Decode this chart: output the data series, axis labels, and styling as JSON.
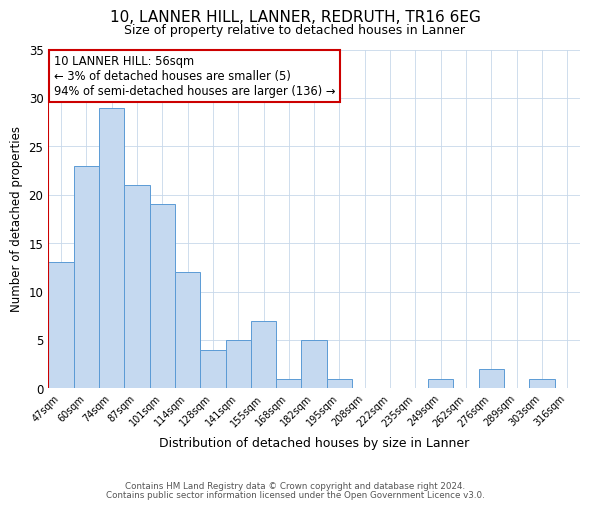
{
  "title": "10, LANNER HILL, LANNER, REDRUTH, TR16 6EG",
  "subtitle": "Size of property relative to detached houses in Lanner",
  "xlabel": "Distribution of detached houses by size in Lanner",
  "ylabel": "Number of detached properties",
  "bar_labels": [
    "47sqm",
    "60sqm",
    "74sqm",
    "87sqm",
    "101sqm",
    "114sqm",
    "128sqm",
    "141sqm",
    "155sqm",
    "168sqm",
    "182sqm",
    "195sqm",
    "208sqm",
    "222sqm",
    "235sqm",
    "249sqm",
    "262sqm",
    "276sqm",
    "289sqm",
    "303sqm",
    "316sqm"
  ],
  "bar_values": [
    13,
    23,
    29,
    21,
    19,
    12,
    4,
    5,
    7,
    1,
    5,
    1,
    0,
    0,
    0,
    1,
    0,
    2,
    0,
    1,
    0
  ],
  "bar_color": "#c5d9f0",
  "bar_edge_color": "#5b9bd5",
  "marker_color": "#cc0000",
  "ylim": [
    0,
    35
  ],
  "yticks": [
    0,
    5,
    10,
    15,
    20,
    25,
    30,
    35
  ],
  "annotation_line1": "10 LANNER HILL: 56sqm",
  "annotation_line2": "← 3% of detached houses are smaller (5)",
  "annotation_line3": "94% of semi-detached houses are larger (136) →",
  "annotation_box_edge": "#cc0000",
  "footer1": "Contains HM Land Registry data © Crown copyright and database right 2024.",
  "footer2": "Contains public sector information licensed under the Open Government Licence v3.0.",
  "background_color": "#ffffff",
  "grid_color": "#c8d8ea"
}
